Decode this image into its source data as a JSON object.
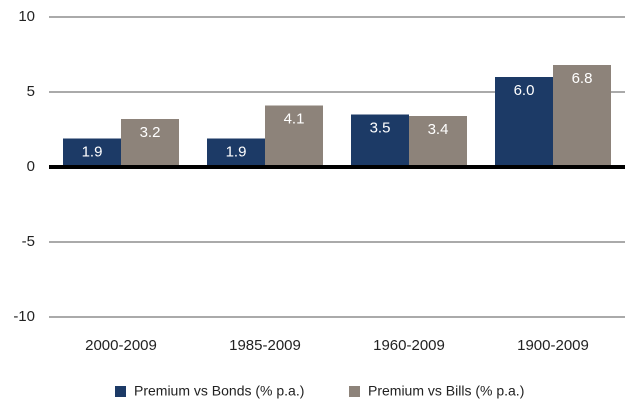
{
  "chart_data": {
    "type": "bar",
    "categories": [
      "2000-2009",
      "1985-2009",
      "1960-2009",
      "1900-2009"
    ],
    "series": [
      {
        "name": "Premium vs Bonds (% p.a.)",
        "color": "#1c3a66",
        "values": [
          1.9,
          1.9,
          3.5,
          6.0
        ],
        "value_labels": [
          "1.9",
          "1.9",
          "3.5",
          "6.0"
        ]
      },
      {
        "name": "Premium vs Bills (% p.a.)",
        "color": "#8d837a",
        "values": [
          3.2,
          4.1,
          3.4,
          6.8
        ],
        "value_labels": [
          "3.2",
          "4.1",
          "3.4",
          "6.8"
        ]
      }
    ],
    "ylim": [
      -10,
      10
    ],
    "yticks": [
      10,
      5,
      0,
      -5,
      -10
    ],
    "grid": true,
    "legend": "bottom"
  }
}
